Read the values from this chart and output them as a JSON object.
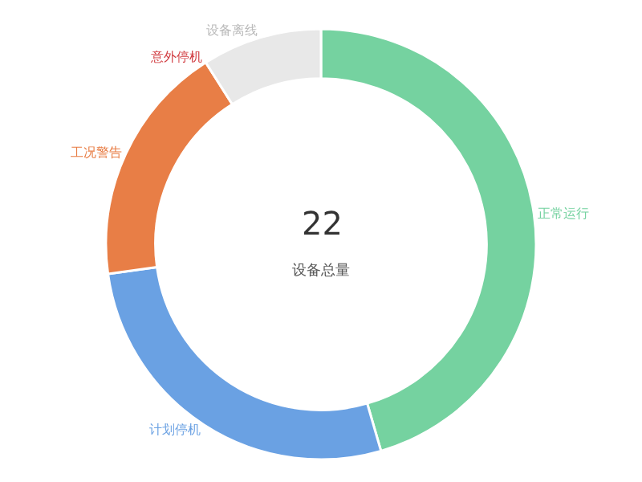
{
  "chart_data": {
    "type": "donut",
    "categories": [
      "正常运行",
      "计划停机",
      "工况警告",
      "意外停机",
      "设备离线"
    ],
    "values": [
      45.5,
      27.3,
      18.2,
      0,
      9.0
    ],
    "colors": [
      "#75d2a0",
      "#6aa1e3",
      "#e87e46",
      "#d0393e",
      "#e8e8e8"
    ],
    "annotations": [
      "22",
      "设备总量"
    ],
    "legend": false
  }
}
